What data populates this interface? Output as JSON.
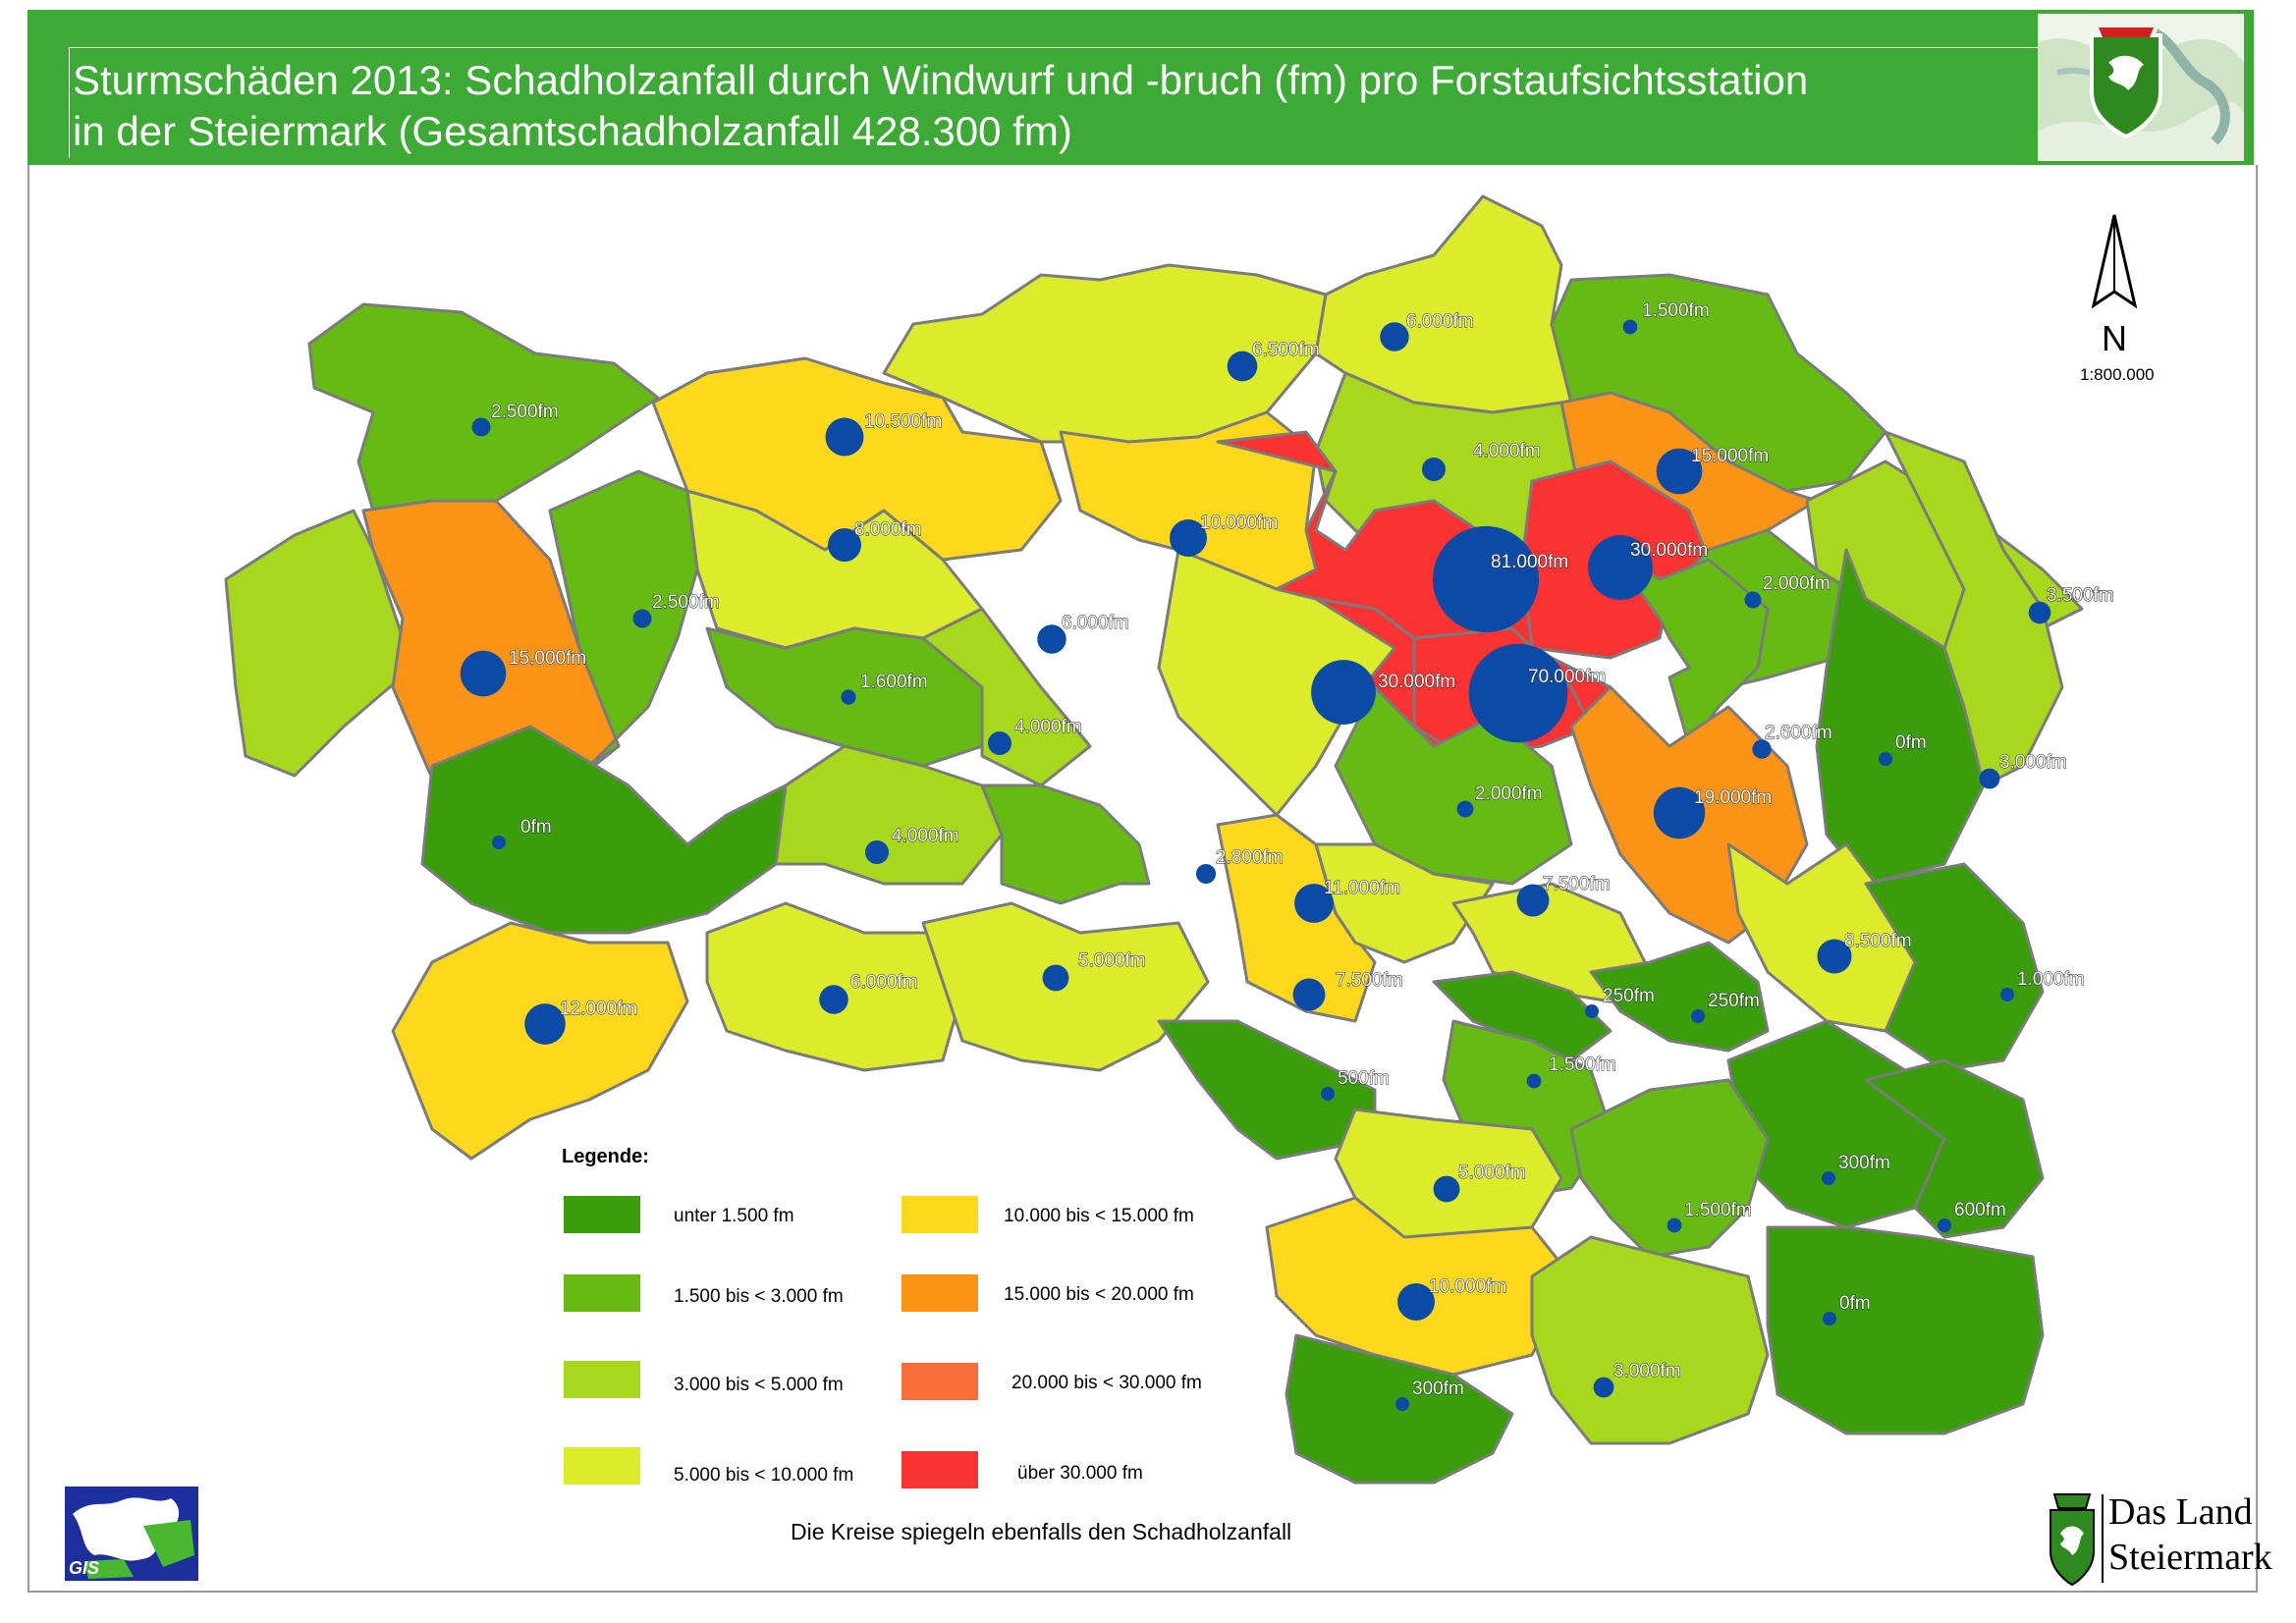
{
  "header": {
    "title_line1": "Sturmschäden 2013: Schadholzanfall durch Windwurf und -bruch (fm) pro Forstaufsichtsstation",
    "title_line2": "in der Steiermark (Gesamtschadholzanfall 428.300 fm)"
  },
  "map": {
    "north_label": "N",
    "scale": "1:800.000",
    "footnote": "Die Kreise spiegeln ebenfalls den Schadholzanfall",
    "stations": [
      {
        "label": "2.500fm",
        "value": 2500
      },
      {
        "label": "10.500fm",
        "value": 10500
      },
      {
        "label": "6.500fm",
        "value": 6500
      },
      {
        "label": "6.000fm",
        "value": 6000
      },
      {
        "label": "1.500fm",
        "value": 1500
      },
      {
        "label": "15.000fm",
        "value": 15000
      },
      {
        "label": "4.000fm",
        "value": 4000
      },
      {
        "label": "8.000fm",
        "value": 8000
      },
      {
        "label": "10.000fm",
        "value": 10000
      },
      {
        "label": "81.000fm",
        "value": 81000
      },
      {
        "label": "30.000fm",
        "value": 30000
      },
      {
        "label": "2.000fm",
        "value": 2000
      },
      {
        "label": "3.500fm",
        "value": 3500
      },
      {
        "label": "3.500fm",
        "value": 3500
      },
      {
        "label": "15.000fm",
        "value": 15000
      },
      {
        "label": "2.500fm",
        "value": 2500
      },
      {
        "label": "6.000fm",
        "value": 6000
      },
      {
        "label": "30.000fm",
        "value": 30000
      },
      {
        "label": "70.000fm",
        "value": 70000
      },
      {
        "label": "1.600fm",
        "value": 1600
      },
      {
        "label": "4.000fm",
        "value": 4000
      },
      {
        "label": "2.600fm",
        "value": 2600
      },
      {
        "label": "0fm",
        "value": 0
      },
      {
        "label": "3.000fm",
        "value": 3000
      },
      {
        "label": "19.000fm",
        "value": 19000
      },
      {
        "label": "2.000fm",
        "value": 2000
      },
      {
        "label": "0fm",
        "value": 0
      },
      {
        "label": "4.000fm",
        "value": 4000
      },
      {
        "label": "2.800fm",
        "value": 2800
      },
      {
        "label": "11.000fm",
        "value": 11000
      },
      {
        "label": "7.500fm",
        "value": 7500
      },
      {
        "label": "8.500fm",
        "value": 8500
      },
      {
        "label": "12.000fm",
        "value": 12000
      },
      {
        "label": "6.000fm",
        "value": 6000
      },
      {
        "label": "5.000fm",
        "value": 5000
      },
      {
        "label": "7.500fm",
        "value": 7500
      },
      {
        "label": "250fm",
        "value": 250
      },
      {
        "label": "250fm",
        "value": 250
      },
      {
        "label": "1.000fm",
        "value": 1000
      },
      {
        "label": "1.500fm",
        "value": 1500
      },
      {
        "label": "500fm",
        "value": 500
      },
      {
        "label": "5.000fm",
        "value": 5000
      },
      {
        "label": "300fm",
        "value": 300
      },
      {
        "label": "1.500fm",
        "value": 1500
      },
      {
        "label": "600fm",
        "value": 600
      },
      {
        "label": "10.000fm",
        "value": 10000
      },
      {
        "label": "0fm",
        "value": 0
      },
      {
        "label": "3.000fm",
        "value": 3000
      },
      {
        "label": "300fm",
        "value": 300
      }
    ]
  },
  "legend": {
    "title": "Legende:",
    "items": [
      {
        "label": "unter  1.500 fm",
        "color": "#3a9e0a"
      },
      {
        "label": "1.500 bis <  3.000 fm",
        "color": "#66bb12"
      },
      {
        "label": "3.000 bis <  5.000 fm",
        "color": "#a7d81c"
      },
      {
        "label": "5.000 bis < 10.000 fm",
        "color": "#dcec2a"
      },
      {
        "label": "10.000 bis < 15.000 fm",
        "color": "#fed81a"
      },
      {
        "label": "15.000 bis < 20.000 fm",
        "color": "#fb9416"
      },
      {
        "label": "20.000 bis < 30.000 fm",
        "color": "#f86d3b"
      },
      {
        "label": "über 30.000 fm",
        "color": "#fb3232"
      }
    ]
  },
  "logos": {
    "gis": "GIS",
    "land_line1": "Das Land",
    "land_line2": "Steiermark"
  },
  "colors": {
    "header": "#3daa35",
    "circle": "#0b4aa6",
    "district_border": "#7b7b7b"
  }
}
